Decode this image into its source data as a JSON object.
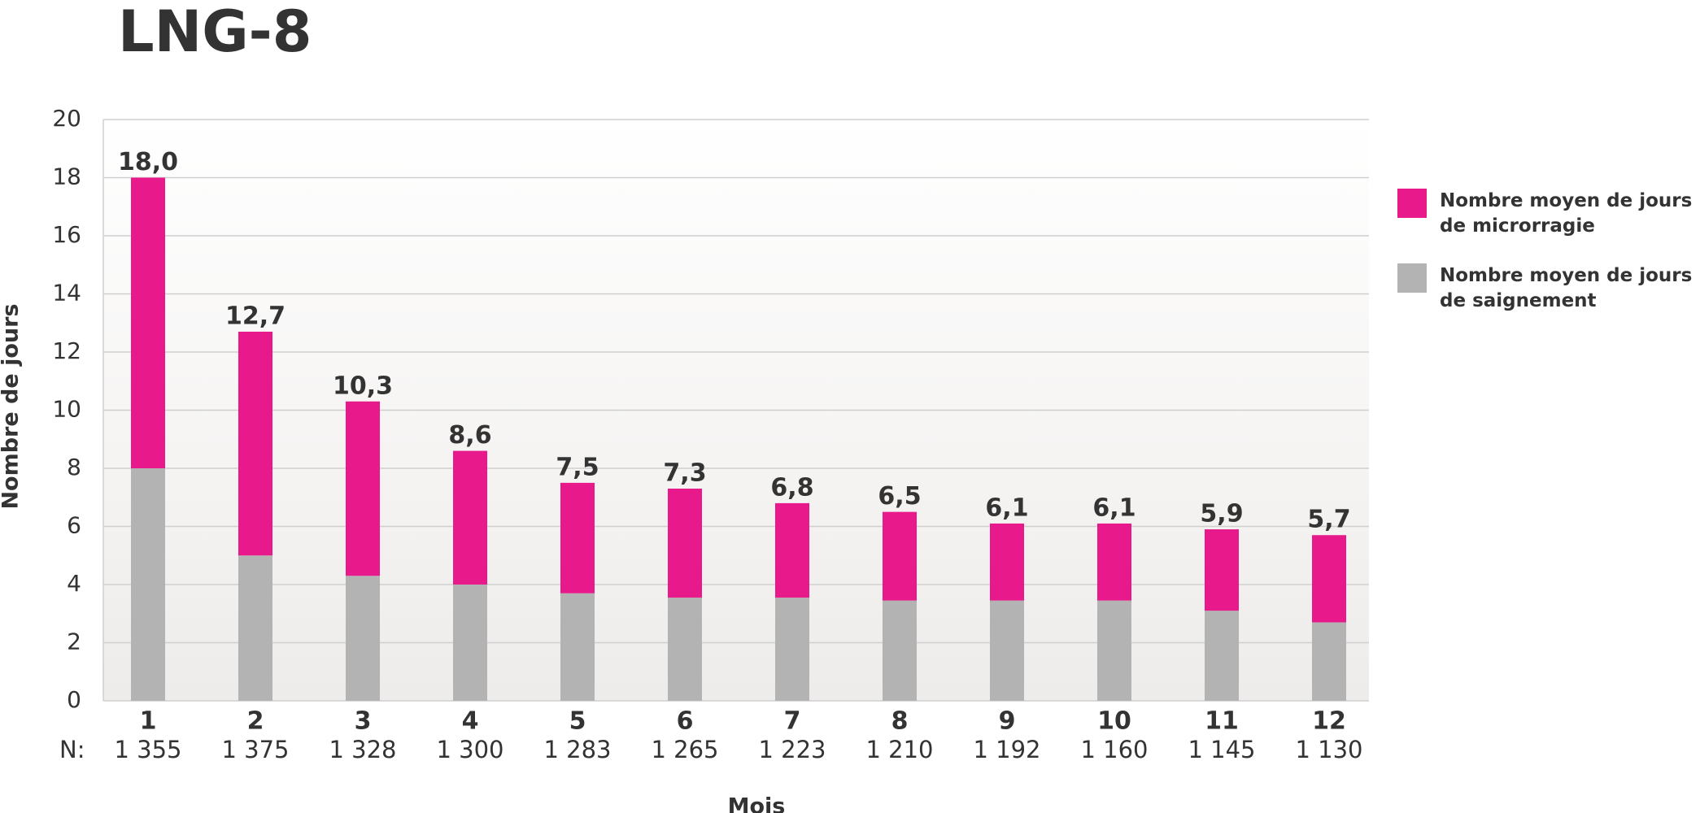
{
  "chart_data": {
    "type": "stacked_bar",
    "title": "LNG-8",
    "x_label": "Mois",
    "y_label": "Nombre de jours",
    "categories": [
      "1",
      "2",
      "3",
      "4",
      "5",
      "6",
      "7",
      "8",
      "9",
      "10",
      "11",
      "12"
    ],
    "n_row": {
      "label": "N:",
      "values": [
        "1 355",
        "1 375",
        "1 328",
        "1 300",
        "1 283",
        "1 265",
        "1 223",
        "1 210",
        "1 192",
        "1 160",
        "1 145",
        "1 130"
      ]
    },
    "series": [
      {
        "name": "Nombre moyen de jours de saignement",
        "color": "#b3b3b3",
        "values": [
          8.0,
          5.0,
          4.3,
          4.0,
          3.7,
          3.55,
          3.55,
          3.45,
          3.45,
          3.45,
          3.1,
          2.7
        ]
      },
      {
        "name": "Nombre moyen de jours de microrragie",
        "color": "#e8198b",
        "values": [
          10.0,
          7.7,
          6.0,
          4.6,
          3.8,
          3.75,
          3.25,
          3.05,
          2.65,
          2.65,
          2.8,
          3.0
        ]
      }
    ],
    "totals": {
      "values": [
        18.0,
        12.7,
        10.3,
        8.6,
        7.5,
        7.3,
        6.8,
        6.5,
        6.1,
        6.1,
        5.9,
        5.7
      ],
      "value_labels": [
        "18,0",
        "12,7",
        "10,3",
        "8,6",
        "7,5",
        "7,3",
        "6,8",
        "6,5",
        "6,1",
        "6,1",
        "5,9",
        "5,7"
      ]
    },
    "ylim": [
      0,
      20
    ],
    "yticks": [
      0,
      2,
      4,
      6,
      8,
      10,
      12,
      14,
      16,
      18,
      20
    ],
    "grid": true
  }
}
